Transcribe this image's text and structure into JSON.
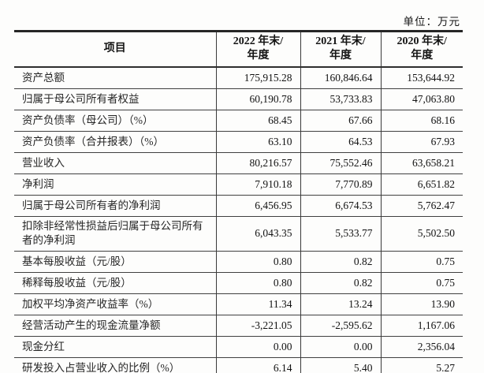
{
  "unit_label": "单位：万元",
  "table": {
    "header": {
      "item": "项目",
      "cols": [
        {
          "line1": "2022 年末/",
          "line2": "年度"
        },
        {
          "line1": "2021 年末/",
          "line2": "年度"
        },
        {
          "line1": "2020 年末/",
          "line2": "年度"
        }
      ]
    },
    "rows": [
      {
        "label": "资产总额",
        "v2022": "175,915.28",
        "v2021": "160,846.64",
        "v2020": "153,644.92"
      },
      {
        "label": "归属于母公司所有者权益",
        "v2022": "60,190.78",
        "v2021": "53,733.83",
        "v2020": "47,063.80"
      },
      {
        "label": "资产负债率（母公司）（%）",
        "v2022": "68.45",
        "v2021": "67.66",
        "v2020": "68.16"
      },
      {
        "label": "资产负债率（合并报表）（%）",
        "v2022": "63.10",
        "v2021": "64.53",
        "v2020": "67.93"
      },
      {
        "label": "营业收入",
        "v2022": "80,216.57",
        "v2021": "75,552.46",
        "v2020": "63,658.21"
      },
      {
        "label": "净利润",
        "v2022": "7,910.18",
        "v2021": "7,770.89",
        "v2020": "6,651.82"
      },
      {
        "label": "归属于母公司所有者的净利润",
        "v2022": "6,456.95",
        "v2021": "6,674.53",
        "v2020": "5,762.47"
      },
      {
        "label": "扣除非经常性损益后归属于母公司所有者的净利润",
        "v2022": "6,043.35",
        "v2021": "5,533.77",
        "v2020": "5,502.50"
      },
      {
        "label": "基本每股收益（元/股）",
        "v2022": "0.80",
        "v2021": "0.82",
        "v2020": "0.75"
      },
      {
        "label": "稀释每股收益（元/股）",
        "v2022": "0.80",
        "v2021": "0.82",
        "v2020": "0.75"
      },
      {
        "label": "加权平均净资产收益率（%）",
        "v2022": "11.34",
        "v2021": "13.24",
        "v2020": "13.90"
      },
      {
        "label": "经营活动产生的现金流量净额",
        "v2022": "-3,221.05",
        "v2021": "-2,595.62",
        "v2020": "1,167.06"
      },
      {
        "label": "现金分红",
        "v2022": "0.00",
        "v2021": "0.00",
        "v2020": "2,356.04"
      },
      {
        "label": "研发投入占营业收入的比例（%）",
        "v2022": "6.14",
        "v2021": "5.40",
        "v2020": "5.27"
      }
    ]
  }
}
